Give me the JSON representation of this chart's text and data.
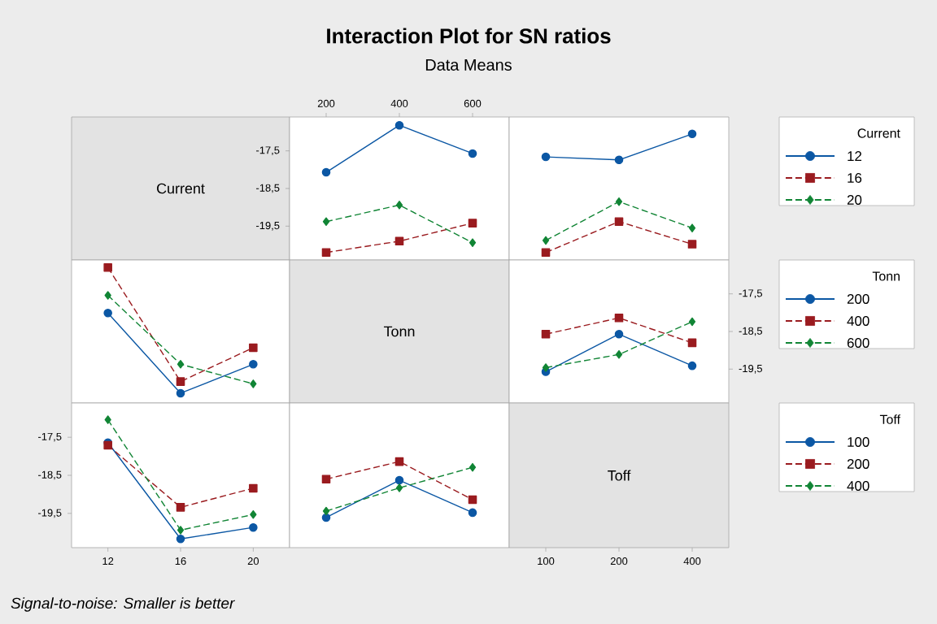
{
  "chart_data": [
    {
      "type": "other",
      "title": "Interaction Plot for SN ratios",
      "subtitle": "Data Means",
      "annotations": [
        "Current"
      ]
    },
    {
      "type": "line",
      "categories": [
        "200",
        "400",
        "600"
      ],
      "ylim": [
        -20.4,
        -16.6
      ],
      "yticks": [
        {
          "value": -17.5,
          "label": "-17,5"
        },
        {
          "value": -18.5,
          "label": "-18,5"
        },
        {
          "value": -19.5,
          "label": "-19,5"
        }
      ],
      "legend": "right",
      "legend_title": "Current",
      "series": [
        {
          "name": "12",
          "color": "#0b57a4",
          "marker": "circle",
          "line_style": "solid",
          "values": [
            -18.07,
            -16.82,
            -17.57
          ]
        },
        {
          "name": "16",
          "color": "#9a1b1f",
          "marker": "square",
          "line_style": "dashed",
          "values": [
            -20.2,
            -19.9,
            -19.42
          ]
        },
        {
          "name": "20",
          "color": "#118535",
          "marker": "diamond",
          "line_style": "dashed",
          "values": [
            -19.38,
            -18.94,
            -19.94
          ]
        }
      ]
    },
    {
      "type": "line",
      "categories": [
        "100",
        "200",
        "400"
      ],
      "ylim": [
        -20.4,
        -16.6
      ],
      "tick_labels": false,
      "series": [
        {
          "color": "#0b57a4",
          "marker": "circle",
          "line_style": "solid",
          "values": [
            -17.66,
            -17.74,
            -17.05
          ]
        },
        {
          "color": "#9a1b1f",
          "marker": "square",
          "line_style": "dashed",
          "values": [
            -20.2,
            -19.38,
            -19.98
          ]
        },
        {
          "color": "#118535",
          "marker": "diamond",
          "line_style": "dashed",
          "values": [
            -19.88,
            -18.85,
            -19.55
          ]
        }
      ]
    },
    {
      "type": "line",
      "categories": [
        "12",
        "16",
        "20"
      ],
      "ylim": [
        -20.4,
        -16.6
      ],
      "tick_labels": false,
      "legend": "right",
      "legend_title": "Tonn",
      "series": [
        {
          "name": "200",
          "color": "#0b57a4",
          "marker": "circle",
          "line_style": "solid",
          "values": [
            -18.01,
            -20.14,
            -19.37
          ]
        },
        {
          "name": "400",
          "color": "#9a1b1f",
          "marker": "square",
          "line_style": "dashed",
          "values": [
            -16.8,
            -19.83,
            -18.93
          ]
        },
        {
          "name": "600",
          "color": "#118535",
          "marker": "diamond",
          "line_style": "dashed",
          "values": [
            -17.54,
            -19.37,
            -19.89
          ]
        }
      ]
    },
    {
      "type": "other",
      "annotations": [
        "Tonn"
      ]
    },
    {
      "type": "line",
      "categories": [
        "100",
        "200",
        "400"
      ],
      "ylim": [
        -20.4,
        -16.6
      ],
      "yticks": [
        {
          "value": -17.5,
          "label": "-17,5"
        },
        {
          "value": -18.5,
          "label": "-18,5"
        },
        {
          "value": -19.5,
          "label": "-19,5"
        }
      ],
      "tick_labels": "y",
      "series": [
        {
          "color": "#0b57a4",
          "marker": "circle",
          "line_style": "solid",
          "values": [
            -19.57,
            -18.57,
            -19.41
          ]
        },
        {
          "color": "#9a1b1f",
          "marker": "square",
          "line_style": "dashed",
          "values": [
            -18.57,
            -18.14,
            -18.8
          ]
        },
        {
          "color": "#118535",
          "marker": "diamond",
          "line_style": "dashed",
          "values": [
            -19.46,
            -19.11,
            -18.24
          ]
        }
      ]
    },
    {
      "type": "line",
      "categories": [
        "12",
        "16",
        "20"
      ],
      "ylim": [
        -20.4,
        -16.6
      ],
      "yticks": [
        {
          "value": -17.5,
          "label": "-17,5"
        },
        {
          "value": -18.5,
          "label": "-18,5"
        },
        {
          "value": -19.5,
          "label": "-19,5"
        }
      ],
      "legend": "right",
      "legend_title": "Toff",
      "annotations": [
        "Signal-to-noise: Smaller is better"
      ],
      "series": [
        {
          "name": "100",
          "color": "#0b57a4",
          "marker": "circle",
          "line_style": "solid",
          "values": [
            -17.64,
            -20.17,
            -19.87
          ]
        },
        {
          "name": "200",
          "color": "#9a1b1f",
          "marker": "square",
          "line_style": "dashed",
          "values": [
            -17.71,
            -19.34,
            -18.84
          ]
        },
        {
          "name": "400",
          "color": "#118535",
          "marker": "diamond",
          "line_style": "dashed",
          "values": [
            -17.04,
            -19.94,
            -19.53
          ]
        }
      ]
    },
    {
      "type": "line",
      "categories": [
        "200",
        "400",
        "600"
      ],
      "ylim": [
        -20.4,
        -16.6
      ],
      "tick_labels": false,
      "series": [
        {
          "color": "#0b57a4",
          "marker": "circle",
          "line_style": "solid",
          "values": [
            -19.61,
            -18.63,
            -19.48
          ]
        },
        {
          "color": "#9a1b1f",
          "marker": "square",
          "line_style": "dashed",
          "values": [
            -18.6,
            -18.14,
            -19.14
          ]
        },
        {
          "color": "#118535",
          "marker": "diamond",
          "line_style": "dashed",
          "values": [
            -19.44,
            -18.83,
            -18.29
          ]
        }
      ]
    },
    {
      "type": "other",
      "annotations": [
        "Toff"
      ],
      "categories": [
        "100",
        "200",
        "400"
      ]
    }
  ]
}
